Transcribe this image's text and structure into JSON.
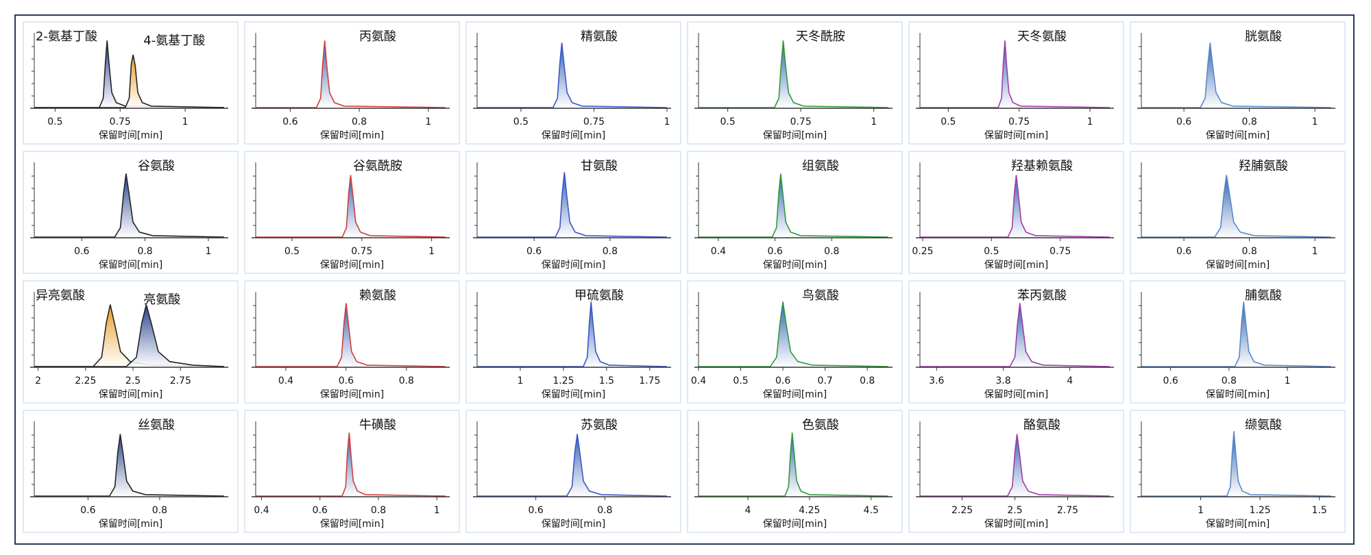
{
  "chart_data": [
    {
      "type": "line",
      "xlabel": "保留时间[min]",
      "xlim": [
        0.42,
        1.15
      ],
      "xticks": [
        0.5,
        0.75,
        1
      ],
      "ylim": [
        0,
        100
      ],
      "series": [
        {
          "name": "2-氨基丁酸",
          "color": "#222222",
          "fill": "#24408f",
          "x": [
            0.42,
            0.67,
            0.685,
            0.693,
            0.7,
            0.708,
            0.718,
            0.735,
            0.77,
            1.15
          ],
          "values": [
            1,
            1,
            14,
            62,
            95,
            60,
            22,
            8,
            3,
            1
          ]
        },
        {
          "name": "4-氨基丁酸",
          "color": "#222222",
          "fill": "#e89a20",
          "x": [
            0.42,
            0.77,
            0.785,
            0.793,
            0.8,
            0.808,
            0.818,
            0.835,
            0.87,
            1.15
          ],
          "values": [
            1,
            1,
            14,
            62,
            75,
            60,
            22,
            8,
            3,
            1
          ]
        }
      ]
    },
    {
      "type": "line",
      "title": "丙氨酸",
      "xlabel": "保留时间[min]",
      "xlim": [
        0.5,
        1.05
      ],
      "xticks": [
        0.6,
        0.8,
        1
      ],
      "ylim": [
        0,
        100
      ],
      "series": [
        {
          "color": "#d23c3c",
          "fill": "#2f5fb0",
          "x": [
            0.5,
            0.676,
            0.688,
            0.694,
            0.7,
            0.706,
            0.714,
            0.728,
            0.756,
            1.05
          ],
          "values": [
            1,
            1,
            14,
            62,
            95,
            60,
            22,
            8,
            3,
            1
          ]
        }
      ]
    },
    {
      "type": "line",
      "title": "精氨酸",
      "xlabel": "保留时间[min]",
      "xlim": [
        0.35,
        1.0
      ],
      "xticks": [
        0.5,
        0.75,
        1
      ],
      "ylim": [
        0,
        100
      ],
      "series": [
        {
          "color": "#3a55c8",
          "fill": "#2f5fb0",
          "x": [
            0.35,
            0.61,
            0.625,
            0.633,
            0.64,
            0.648,
            0.658,
            0.675,
            0.71,
            1.0
          ],
          "values": [
            1,
            1,
            14,
            62,
            92,
            60,
            22,
            8,
            3,
            1
          ]
        }
      ]
    },
    {
      "type": "line",
      "title": "天冬酰胺",
      "xlabel": "保留时间[min]",
      "xlim": [
        0.4,
        1.05
      ],
      "xticks": [
        0.5,
        0.75,
        1
      ],
      "ylim": [
        0,
        100
      ],
      "series": [
        {
          "color": "#2e9a3a",
          "fill": "#2f5fb0",
          "x": [
            0.4,
            0.66,
            0.675,
            0.683,
            0.69,
            0.698,
            0.708,
            0.725,
            0.76,
            1.05
          ],
          "values": [
            1,
            1,
            14,
            62,
            95,
            60,
            22,
            8,
            3,
            1
          ]
        }
      ]
    },
    {
      "type": "line",
      "title": "天冬氨酸",
      "xlabel": "保留时间[min]",
      "xlim": [
        0.4,
        1.07
      ],
      "xticks": [
        0.5,
        0.75,
        1
      ],
      "ylim": [
        0,
        100
      ],
      "series": [
        {
          "color": "#a03ca8",
          "fill": "#2f5fb0",
          "x": [
            0.4,
            0.676,
            0.688,
            0.694,
            0.7,
            0.706,
            0.714,
            0.728,
            0.756,
            1.07
          ],
          "values": [
            1,
            1,
            14,
            62,
            95,
            60,
            22,
            8,
            3,
            1
          ]
        }
      ]
    },
    {
      "type": "line",
      "title": "胱氨酸",
      "xlabel": "保留时间[min]",
      "xlim": [
        0.47,
        1.05
      ],
      "xticks": [
        0.6,
        0.8,
        1
      ],
      "ylim": [
        0,
        100
      ],
      "series": [
        {
          "color": "#5a8ac8",
          "fill": "#2f5fb0",
          "x": [
            0.47,
            0.65,
            0.665,
            0.673,
            0.68,
            0.688,
            0.698,
            0.715,
            0.75,
            1.05
          ],
          "values": [
            1,
            1,
            14,
            62,
            92,
            60,
            22,
            8,
            3,
            1
          ]
        }
      ]
    },
    {
      "type": "line",
      "title": "谷氨酸",
      "xlabel": "保留时间[min]",
      "xlim": [
        0.45,
        1.05
      ],
      "xticks": [
        0.6,
        0.8,
        1
      ],
      "ylim": [
        0,
        100
      ],
      "series": [
        {
          "color": "#222222",
          "fill": "#24408f",
          "x": [
            0.45,
            0.704,
            0.722,
            0.732,
            0.74,
            0.75,
            0.762,
            0.782,
            0.824,
            1.05
          ],
          "values": [
            1,
            1,
            14,
            62,
            90,
            60,
            22,
            8,
            3,
            1
          ]
        }
      ]
    },
    {
      "type": "line",
      "title": "谷氨酰胺",
      "xlabel": "保留时间[min]",
      "xlim": [
        0.37,
        1.05
      ],
      "xticks": [
        0.5,
        0.75,
        1
      ],
      "ylim": [
        0,
        100
      ],
      "series": [
        {
          "color": "#d23c3c",
          "fill": "#2f5fb0",
          "x": [
            0.37,
            0.68,
            0.695,
            0.703,
            0.71,
            0.718,
            0.728,
            0.745,
            0.78,
            1.05
          ],
          "values": [
            1,
            1,
            14,
            62,
            88,
            60,
            22,
            8,
            3,
            1
          ]
        }
      ]
    },
    {
      "type": "line",
      "title": "甘氨酸",
      "xlabel": "保留时间[min]",
      "xlim": [
        0.45,
        0.95
      ],
      "xticks": [
        0.6,
        0.8
      ],
      "ylim": [
        0,
        100
      ],
      "series": [
        {
          "color": "#3a55c8",
          "fill": "#2f5fb0",
          "x": [
            0.45,
            0.656,
            0.668,
            0.674,
            0.68,
            0.686,
            0.694,
            0.708,
            0.736,
            0.95
          ],
          "values": [
            1,
            1,
            14,
            62,
            92,
            60,
            22,
            8,
            3,
            1
          ]
        }
      ]
    },
    {
      "type": "line",
      "title": "组氨酸",
      "xlabel": "保留时间[min]",
      "xlim": [
        0.33,
        1.0
      ],
      "xticks": [
        0.4,
        0.6,
        0.8
      ],
      "ylim": [
        0,
        100
      ],
      "series": [
        {
          "color": "#2e9a3a",
          "fill": "#2f5fb0",
          "x": [
            0.33,
            0.59,
            0.605,
            0.613,
            0.62,
            0.628,
            0.638,
            0.655,
            0.69,
            1.0
          ],
          "values": [
            1,
            1,
            14,
            62,
            90,
            60,
            22,
            8,
            3,
            1
          ]
        }
      ]
    },
    {
      "type": "line",
      "title": "羟基赖氨酸",
      "xlabel": "保留时间[min]",
      "xlim": [
        0.24,
        0.93
      ],
      "xticks": [
        0.25,
        0.5,
        0.75
      ],
      "ylim": [
        0,
        100
      ],
      "series": [
        {
          "color": "#a03ca8",
          "fill": "#2f5fb0",
          "x": [
            0.24,
            0.56,
            0.575,
            0.583,
            0.59,
            0.598,
            0.608,
            0.625,
            0.66,
            0.93
          ],
          "values": [
            1,
            1,
            14,
            62,
            88,
            60,
            22,
            8,
            3,
            1
          ]
        }
      ]
    },
    {
      "type": "line",
      "title": "羟脯氨酸",
      "xlabel": "保留时间[min]",
      "xlim": [
        0.47,
        1.05
      ],
      "xticks": [
        0.6,
        0.8,
        1
      ],
      "ylim": [
        0,
        100
      ],
      "series": [
        {
          "color": "#5a8ac8",
          "fill": "#2f5fb0",
          "x": [
            0.47,
            0.694,
            0.712,
            0.722,
            0.73,
            0.74,
            0.752,
            0.772,
            0.814,
            1.05
          ],
          "values": [
            1,
            1,
            14,
            62,
            88,
            60,
            22,
            8,
            3,
            1
          ]
        }
      ]
    },
    {
      "type": "line",
      "xlabel": "保留时间[min]",
      "xlim": [
        1.98,
        2.98
      ],
      "xticks": [
        2,
        2.25,
        2.5,
        2.75
      ],
      "ylim": [
        0,
        100
      ],
      "series": [
        {
          "name": "异亮氨酸",
          "color": "#222222",
          "fill": "#e89a20",
          "x": [
            1.98,
            2.29,
            2.335,
            2.359,
            2.38,
            2.404,
            2.434,
            2.485,
            2.59,
            2.98
          ],
          "values": [
            1,
            1,
            14,
            62,
            88,
            60,
            22,
            8,
            3,
            1
          ]
        },
        {
          "name": "亮氨酸",
          "color": "#222222",
          "fill": "#24408f",
          "x": [
            1.98,
            2.465,
            2.518,
            2.546,
            2.57,
            2.598,
            2.633,
            2.693,
            2.815,
            2.98
          ],
          "values": [
            1,
            1,
            14,
            62,
            88,
            60,
            22,
            8,
            3,
            1
          ]
        }
      ]
    },
    {
      "type": "line",
      "title": "赖氨酸",
      "xlabel": "保留时间[min]",
      "xlim": [
        0.3,
        0.93
      ],
      "xticks": [
        0.4,
        0.6,
        0.8
      ],
      "ylim": [
        0,
        100
      ],
      "series": [
        {
          "color": "#d23c3c",
          "fill": "#2f5fb0",
          "x": [
            0.3,
            0.57,
            0.585,
            0.593,
            0.6,
            0.608,
            0.618,
            0.635,
            0.67,
            0.93
          ],
          "values": [
            1,
            1,
            14,
            62,
            90,
            60,
            22,
            8,
            3,
            1
          ]
        }
      ]
    },
    {
      "type": "line",
      "title": "甲硫氨酸",
      "xlabel": "保留时间[min]",
      "xlim": [
        0.75,
        1.85
      ],
      "xticks": [
        1,
        1.25,
        1.5,
        1.75
      ],
      "ylim": [
        0,
        100
      ],
      "series": [
        {
          "color": "#3a55c8",
          "fill": "#2f5fb0",
          "x": [
            0.75,
            1.365,
            1.388,
            1.4,
            1.41,
            1.422,
            1.437,
            1.463,
            1.515,
            1.85
          ],
          "values": [
            1,
            1,
            14,
            62,
            92,
            60,
            22,
            8,
            3,
            1
          ]
        }
      ]
    },
    {
      "type": "line",
      "title": "鸟氨酸",
      "xlabel": "保留时间[min]",
      "xlim": [
        0.4,
        0.85
      ],
      "xticks": [
        0.4,
        0.5,
        0.6,
        0.7,
        0.8
      ],
      "ylim": [
        0,
        100
      ],
      "series": [
        {
          "color": "#2e9a3a",
          "fill": "#2f5fb0",
          "x": [
            0.4,
            0.57,
            0.585,
            0.593,
            0.6,
            0.608,
            0.618,
            0.635,
            0.67,
            0.85
          ],
          "values": [
            1,
            1,
            14,
            62,
            92,
            60,
            22,
            8,
            3,
            1
          ]
        }
      ]
    },
    {
      "type": "line",
      "title": "苯丙氨酸",
      "xlabel": "保留时间[min]",
      "xlim": [
        3.55,
        4.12
      ],
      "xticks": [
        3.6,
        3.8,
        4
      ],
      "ylim": [
        0,
        100
      ],
      "series": [
        {
          "color": "#a03ca8",
          "fill": "#2f5fb0",
          "x": [
            3.55,
            3.82,
            3.835,
            3.843,
            3.85,
            3.858,
            3.868,
            3.885,
            3.92,
            4.12
          ],
          "values": [
            1,
            1,
            14,
            62,
            90,
            60,
            22,
            8,
            3,
            1
          ]
        }
      ]
    },
    {
      "type": "line",
      "title": "脯氨酸",
      "xlabel": "保留时间[min]",
      "xlim": [
        0.5,
        1.15
      ],
      "xticks": [
        0.6,
        0.8,
        1
      ],
      "ylim": [
        0,
        100
      ],
      "series": [
        {
          "color": "#5a8ac8",
          "fill": "#2f5fb0",
          "x": [
            0.5,
            0.82,
            0.835,
            0.843,
            0.85,
            0.858,
            0.868,
            0.885,
            0.92,
            1.15
          ],
          "values": [
            1,
            1,
            14,
            62,
            92,
            60,
            22,
            8,
            3,
            1
          ]
        }
      ]
    },
    {
      "type": "line",
      "title": "丝氨酸",
      "xlabel": "保留时间[min]",
      "xlim": [
        0.45,
        0.98
      ],
      "xticks": [
        0.6,
        0.8
      ],
      "ylim": [
        0,
        100
      ],
      "series": [
        {
          "color": "#222222",
          "fill": "#24408f",
          "x": [
            0.45,
            0.66,
            0.675,
            0.683,
            0.69,
            0.698,
            0.708,
            0.725,
            0.76,
            0.98
          ],
          "values": [
            1,
            1,
            14,
            62,
            88,
            60,
            22,
            8,
            3,
            1
          ]
        }
      ]
    },
    {
      "type": "line",
      "title": "牛磺酸",
      "xlabel": "保留时间[min]",
      "xlim": [
        0.38,
        1.03
      ],
      "xticks": [
        0.4,
        0.6,
        0.8,
        1
      ],
      "ylim": [
        0,
        100
      ],
      "series": [
        {
          "color": "#d23c3c",
          "fill": "#2f5fb0",
          "x": [
            0.38,
            0.676,
            0.688,
            0.694,
            0.7,
            0.706,
            0.714,
            0.728,
            0.756,
            1.03
          ],
          "values": [
            1,
            1,
            14,
            62,
            90,
            60,
            22,
            8,
            3,
            1
          ]
        }
      ]
    },
    {
      "type": "line",
      "title": "苏氨酸",
      "xlabel": "保留时间[min]",
      "xlim": [
        0.43,
        0.98
      ],
      "xticks": [
        0.6,
        0.8
      ],
      "ylim": [
        0,
        100
      ],
      "series": [
        {
          "color": "#3a55c8",
          "fill": "#2f5fb0",
          "x": [
            0.43,
            0.69,
            0.705,
            0.713,
            0.72,
            0.728,
            0.738,
            0.755,
            0.79,
            0.98
          ],
          "values": [
            1,
            1,
            14,
            62,
            88,
            60,
            22,
            8,
            3,
            1
          ]
        }
      ]
    },
    {
      "type": "line",
      "title": "色氨酸",
      "xlabel": "保留时间[min]",
      "xlim": [
        3.8,
        4.57
      ],
      "xticks": [
        4,
        4.25,
        4.5
      ],
      "ylim": [
        0,
        100
      ],
      "series": [
        {
          "color": "#2e9a3a",
          "fill": "#2f5fb0",
          "x": [
            3.8,
            4.15,
            4.165,
            4.173,
            4.18,
            4.188,
            4.198,
            4.215,
            4.25,
            4.57
          ],
          "values": [
            1,
            1,
            14,
            62,
            90,
            60,
            22,
            8,
            3,
            1
          ]
        }
      ]
    },
    {
      "type": "line",
      "title": "酪氨酸",
      "xlabel": "保留时间[min]",
      "xlim": [
        2.05,
        2.95
      ],
      "xticks": [
        2.25,
        2.5,
        2.75
      ],
      "ylim": [
        0,
        100
      ],
      "series": [
        {
          "color": "#a03ca8",
          "fill": "#2f5fb0",
          "x": [
            2.05,
            2.465,
            2.488,
            2.5,
            2.51,
            2.522,
            2.537,
            2.563,
            2.615,
            2.95
          ],
          "values": [
            1,
            1,
            14,
            62,
            88,
            60,
            22,
            8,
            3,
            1
          ]
        }
      ]
    },
    {
      "type": "line",
      "title": "缬氨酸",
      "xlabel": "保留时间[min]",
      "xlim": [
        0.75,
        1.55
      ],
      "xticks": [
        1,
        1.25,
        1.5
      ],
      "ylim": [
        0,
        100
      ],
      "series": [
        {
          "color": "#5a8ac8",
          "fill": "#2f5fb0",
          "x": [
            0.75,
            1.11,
            1.125,
            1.133,
            1.14,
            1.148,
            1.158,
            1.175,
            1.21,
            1.55
          ],
          "values": [
            1,
            1,
            14,
            62,
            92,
            60,
            22,
            8,
            3,
            1
          ]
        }
      ]
    }
  ]
}
